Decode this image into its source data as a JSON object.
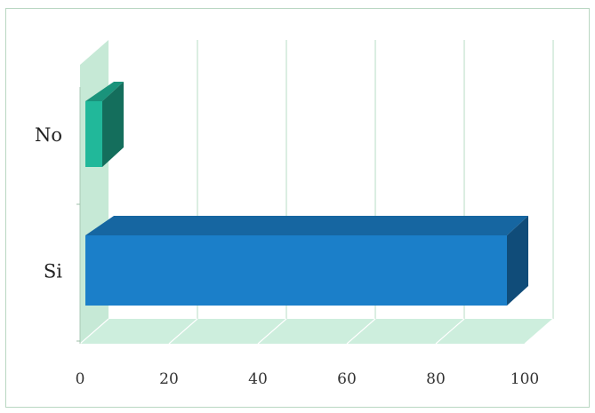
{
  "chart_data": {
    "type": "bar",
    "orientation": "horizontal",
    "style": "3d",
    "categories": [
      "No",
      "Si"
    ],
    "values": [
      5,
      96
    ],
    "xlim": [
      0,
      100
    ],
    "xticks": [
      "0",
      "20",
      "40",
      "60",
      "80",
      "100"
    ],
    "grid": true,
    "legend": "none",
    "colors": {
      "No": "#21b89a",
      "Si": "#1b7fc9",
      "floor": "#cdeedd",
      "wall": "#c6e9d6",
      "gridline": "#b7dcc6"
    }
  }
}
